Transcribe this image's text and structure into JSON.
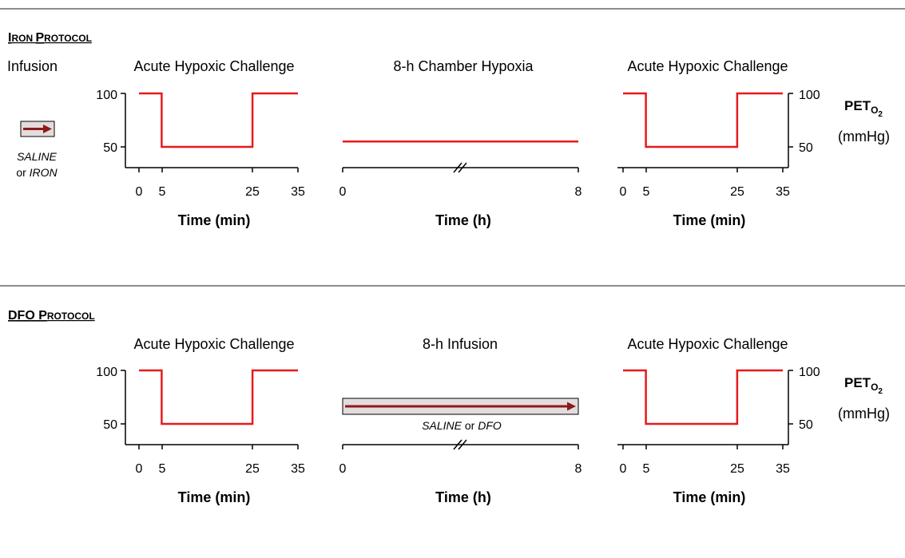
{
  "colors": {
    "trace": "#e8191b",
    "arrow": "#8b1a1a",
    "bar_fill": "#e3dcdc",
    "divider": "#8c8c8c"
  },
  "sections": [
    {
      "title_lead": "I",
      "title_rest": "RON ",
      "title_lead2": "P",
      "title_rest2": "ROTOCOL",
      "infusion_label": "Infusion",
      "infusion_agent1": "SALINE",
      "infusion_or": "or",
      "infusion_agent2": "IRON",
      "panel1_title": "Acute Hypoxic Challenge",
      "panel2_title": "8-h Chamber Hypoxia",
      "panel3_title": "Acute Hypoxic Challenge"
    },
    {
      "title_lead": "DFO P",
      "title_rest": "ROTOCOL",
      "panel1_title": "Acute Hypoxic Challenge",
      "panel2_title": "8-h Infusion",
      "panel3_title": "Acute Hypoxic Challenge",
      "bar_agent1": "SALINE",
      "bar_or": "or",
      "bar_agent2": "DFO"
    }
  ],
  "axes": {
    "y_ticks": [
      "100",
      "50"
    ],
    "x_ticks_min": [
      "0",
      "5",
      "25",
      "35"
    ],
    "x_ticks_h": [
      "0",
      "8"
    ],
    "xlabel_min": "Time (min)",
    "xlabel_h": "Time (h)",
    "ylabel_main": "PET",
    "ylabel_sub": "O",
    "ylabel_subsub": "2",
    "ylabel_unit": "(mmHg)"
  },
  "chart_data": [
    {
      "type": "line",
      "title": "Acute Hypoxic Challenge",
      "xlabel": "Time (min)",
      "x": [
        0,
        5,
        5,
        25,
        25,
        35
      ],
      "y": [
        100,
        100,
        50,
        50,
        100,
        100
      ],
      "xlim": [
        0,
        35
      ]
    },
    {
      "type": "line",
      "title": "8-h Chamber Hypoxia",
      "xlabel": "Time (h)",
      "x": [
        0,
        8
      ],
      "y": [
        55,
        55
      ],
      "xlim": [
        0,
        8
      ]
    },
    {
      "type": "line",
      "title": "Acute Hypoxic Challenge",
      "xlabel": "Time (min)",
      "x": [
        0,
        5,
        5,
        25,
        25,
        35
      ],
      "y": [
        100,
        100,
        50,
        50,
        100,
        100
      ],
      "xlim": [
        0,
        35
      ]
    },
    {
      "type": "line",
      "title": "Acute Hypoxic Challenge",
      "xlabel": "Time (min)",
      "x": [
        0,
        5,
        5,
        25,
        25,
        35
      ],
      "y": [
        100,
        100,
        50,
        50,
        100,
        100
      ],
      "xlim": [
        0,
        35
      ]
    },
    {
      "type": "line",
      "title": "Acute Hypoxic Challenge",
      "xlabel": "Time (min)",
      "x": [
        0,
        5,
        5,
        25,
        25,
        35
      ],
      "y": [
        100,
        100,
        50,
        50,
        100,
        100
      ],
      "xlim": [
        0,
        35
      ]
    }
  ]
}
